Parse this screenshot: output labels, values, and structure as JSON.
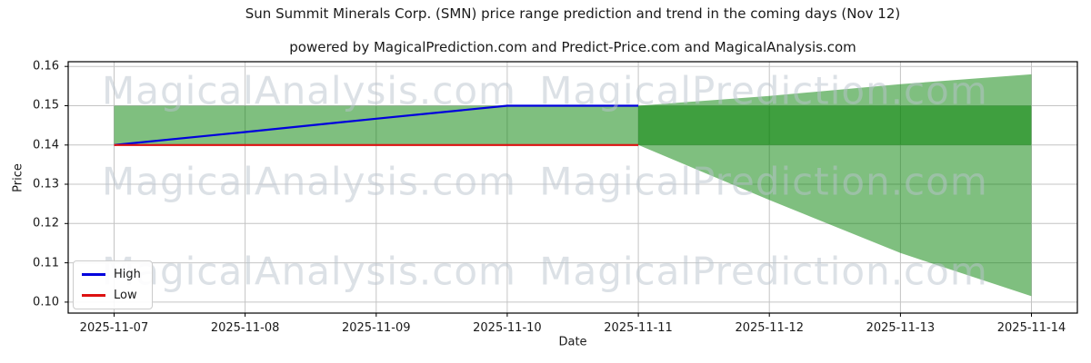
{
  "title": "Sun Summit Minerals Corp. (SMN) price range prediction and trend in the coming days (Nov 12)",
  "subtitle": "powered by MagicalPrediction.com and Predict-Price.com and MagicalAnalysis.com",
  "watermarks": {
    "left": "MagicalAnalysis.com",
    "right": "MagicalPrediction.com"
  },
  "legend": {
    "items": [
      {
        "label": "High",
        "color": "#0000dd"
      },
      {
        "label": "Low",
        "color": "#dd1111"
      }
    ]
  },
  "colors": {
    "band_light": "#7fbf7f",
    "band_dark_overlap": "#3f9f3f",
    "high_line": "#0000dd",
    "low_line": "#dd1111",
    "grid": "#c4c4c4",
    "spine": "#000000"
  },
  "chart_data": {
    "type": "area",
    "title": "Sun Summit Minerals Corp. (SMN) price range prediction and trend in the coming days (Nov 12)",
    "xlabel": "Date",
    "ylabel": "Price",
    "x_ticks": [
      "2025-11-07",
      "2025-11-08",
      "2025-11-09",
      "2025-11-10",
      "2025-11-11",
      "2025-11-12",
      "2025-11-13",
      "2025-11-14"
    ],
    "y_ticks": [
      "0.16",
      "0.15",
      "0.14",
      "0.13",
      "0.12",
      "0.11",
      "0.10"
    ],
    "ylim": [
      0.0972,
      0.1612
    ],
    "xlim_index": [
      -0.35,
      7.35
    ],
    "grid": true,
    "legend_position": "lower left",
    "series": [
      {
        "name": "High",
        "color": "#0000dd",
        "x": [
          0,
          1,
          2,
          3,
          4
        ],
        "values": [
          0.14,
          0.1433,
          0.1467,
          0.15,
          0.15
        ]
      },
      {
        "name": "Low",
        "color": "#dd1111",
        "x": [
          0,
          1,
          2,
          3,
          4
        ],
        "values": [
          0.14,
          0.14,
          0.14,
          0.14,
          0.14
        ]
      }
    ],
    "bands": [
      {
        "name": "history-range",
        "color": "rgba(0,128,0,0.5)",
        "x": [
          0,
          4
        ],
        "upper": [
          0.15,
          0.15
        ],
        "lower": [
          0.14,
          0.14
        ]
      },
      {
        "name": "forecast-range",
        "color": "rgba(0,128,0,0.5)",
        "x": [
          4,
          5,
          6,
          7
        ],
        "upper": [
          0.15,
          0.1525,
          0.1555,
          0.158
        ],
        "lower": [
          0.14,
          0.126,
          0.1125,
          0.1015
        ]
      },
      {
        "name": "forecast-core",
        "color": "rgba(0,128,0,0.5)",
        "x": [
          4,
          7
        ],
        "upper": [
          0.15,
          0.15
        ],
        "lower": [
          0.14,
          0.14
        ]
      }
    ]
  }
}
